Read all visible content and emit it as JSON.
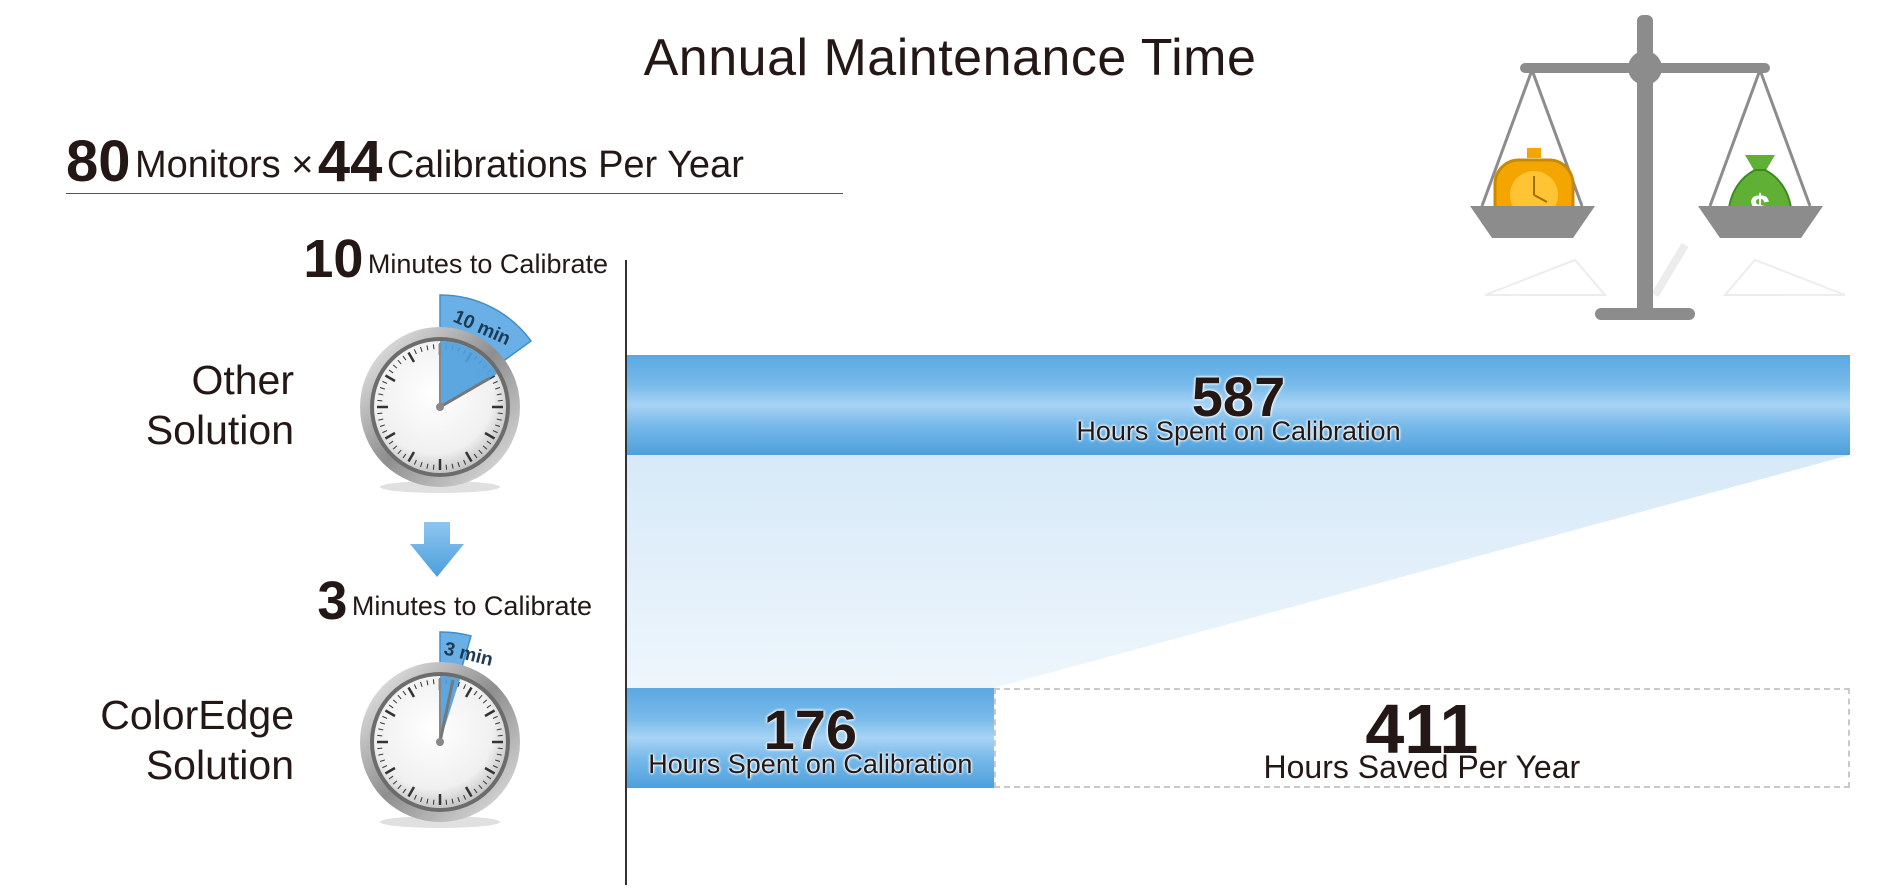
{
  "title": "Annual Maintenance Time",
  "subtitle": {
    "monitors_count": "80",
    "monitors_label": "Monitors ×",
    "calibrations_count": "44",
    "calibrations_label": "Calibrations Per Year"
  },
  "other": {
    "minutes_value": "10",
    "minutes_label": "Minutes to Calibrate",
    "timer_label": "10 min",
    "label_line1": "Other",
    "label_line2": "Solution"
  },
  "coloredge": {
    "minutes_value": "3",
    "minutes_label": "Minutes to Calibrate",
    "timer_label": "3 min",
    "label_line1": "ColorEdge",
    "label_line2": "Solution"
  },
  "colors": {
    "bar_blue": "#5ba8e2",
    "wedge_blue": "#6ab0e6",
    "shade": "#e3f0fa",
    "scale_gray": "#8c8c8c",
    "clock_orange": "#f5a500",
    "money_green": "#5fb035"
  },
  "icons": [
    "stopwatch-icon",
    "down-arrow-icon",
    "balance-scale-icon",
    "clock-icon",
    "money-bag-icon"
  ],
  "chart_data": {
    "type": "bar",
    "orientation": "horizontal",
    "title": "Annual Maintenance Time",
    "categories": [
      "Other Solution",
      "ColorEdge Solution"
    ],
    "series": [
      {
        "name": "Hours Spent on Calibration",
        "values": [
          587,
          176
        ]
      },
      {
        "name": "Hours Saved Per Year",
        "values": [
          0,
          411
        ]
      }
    ],
    "labels": {
      "other_value": "587",
      "other_caption": "Hours Spent on Calibration",
      "coloredge_value": "176",
      "coloredge_caption": "Hours Spent on Calibration",
      "saved_value": "411",
      "saved_caption": "Hours Saved Per Year"
    },
    "xlim": [
      0,
      587
    ],
    "minutes_per_calibration": [
      10,
      3
    ],
    "grid": false,
    "legend": "none"
  }
}
